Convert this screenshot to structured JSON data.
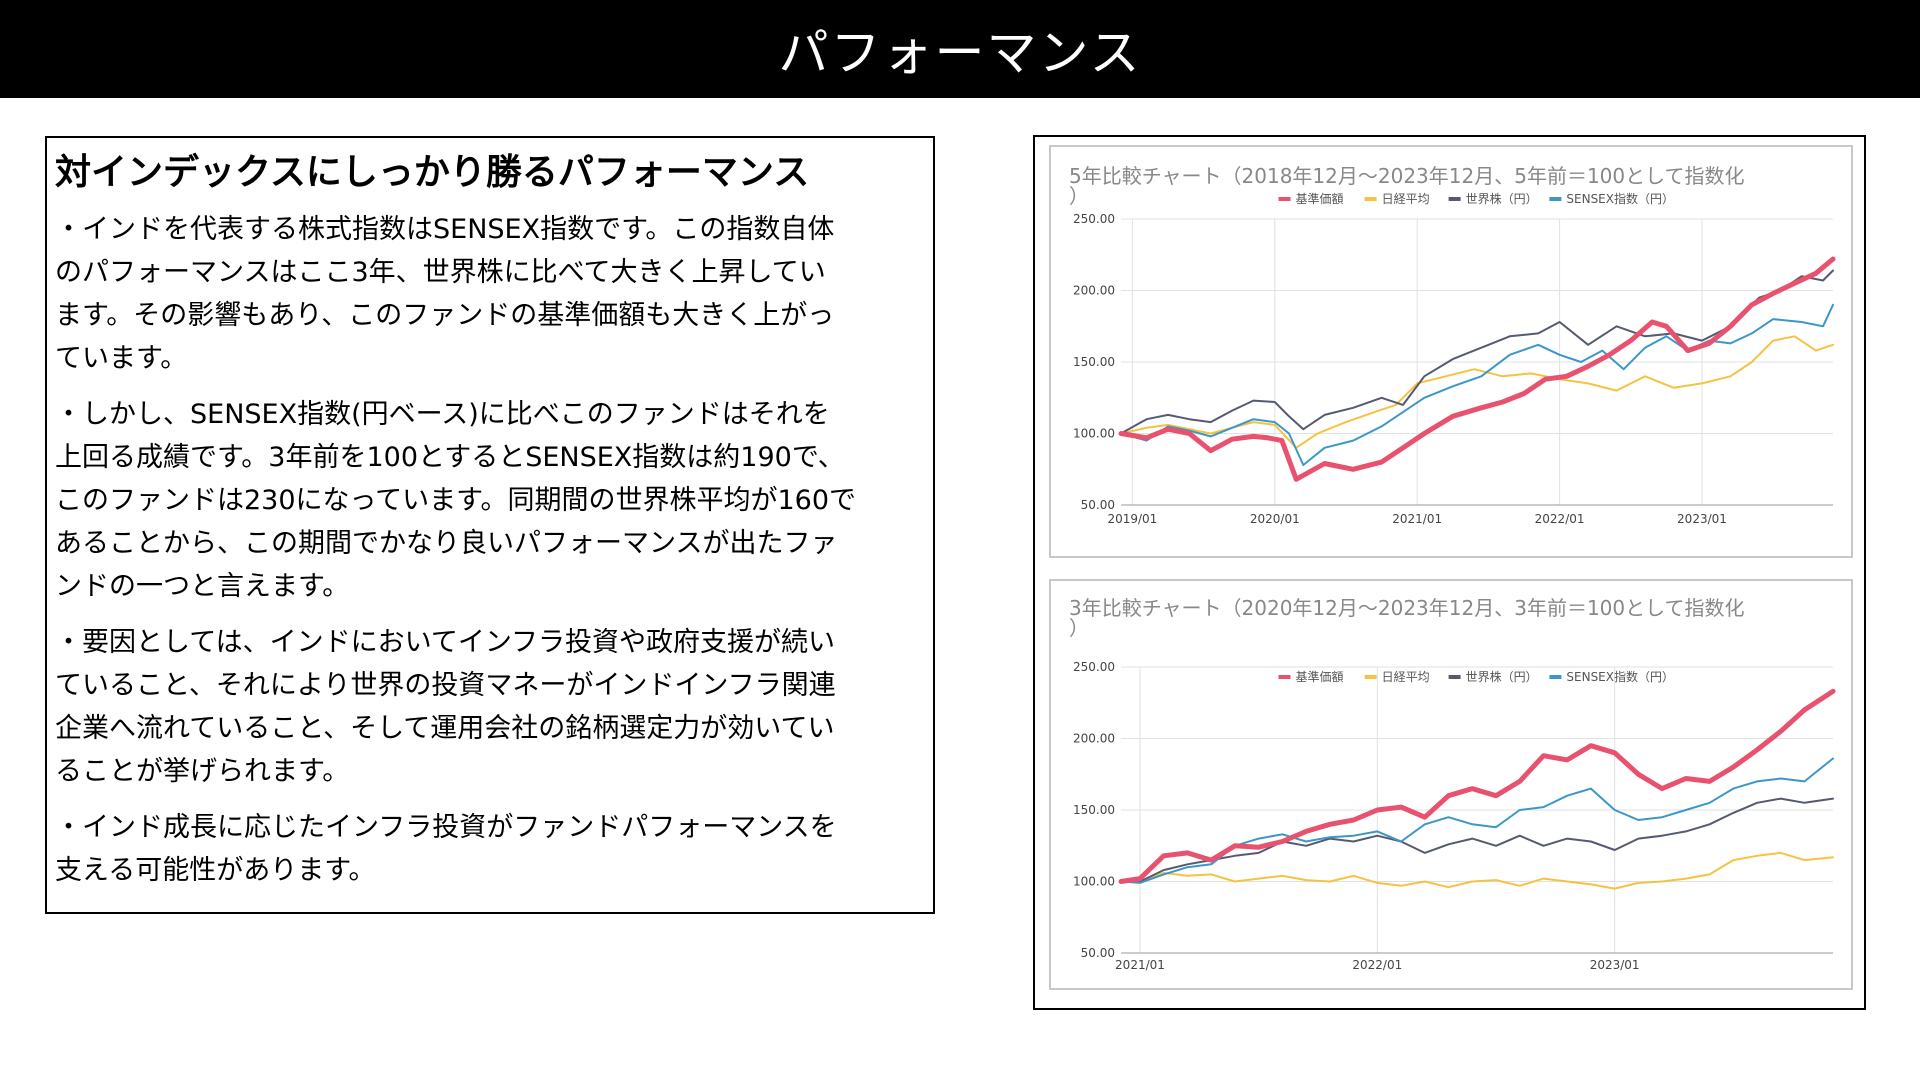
{
  "page": {
    "title": "パフォーマンス"
  },
  "text_box": {
    "heading": "対インデックスにしっかり勝るパフォーマンス",
    "paragraphs": [
      [
        "・インドを代表する株式指数はSENSEX指数です。この指数自体",
        "のパフォーマンスはここ3年、世界株に比べて大きく上昇してい",
        "ます。その影響もあり、このファンドの基準価額も大きく上がっ",
        "ています。"
      ],
      [
        "・しかし、SENSEX指数(円ベース)に比べこのファンドはそれを",
        "上回る成績です。3年前を100とするとSENSEX指数は約190で、",
        "このファンドは230になっています。同期間の世界株平均が160で",
        "あることから、この期間でかなり良いパフォーマンスが出たファ",
        "ンドの一つと言えます。"
      ],
      [
        "・要因としては、インドにおいてインフラ投資や政府支援が続い",
        "ていること、それにより世界の投資マネーがインドインフラ関連",
        "企業へ流れていること、そして運用会社の銘柄選定力が効いてい",
        "ることが挙げられます。"
      ],
      [
        "・インド成長に応じたインフラ投資がファンドパフォーマンスを",
        "支える可能性があります。"
      ]
    ]
  },
  "colors": {
    "fund": "#e8526e",
    "nikkei": "#f5c242",
    "world": "#555a70",
    "sensex": "#3c97c8"
  },
  "chart_data": [
    {
      "type": "line",
      "title_line1": "5年比較チャート（2018年12月～2023年12月、5年前＝100として指数化",
      "title_line2": "）",
      "ylim": [
        50,
        250
      ],
      "yticks": [
        "250.00",
        "200.00",
        "150.00",
        "100.00",
        "50.00"
      ],
      "xticks": [
        {
          "x": 2019.0,
          "label": "2019/01"
        },
        {
          "x": 2020.0,
          "label": "2020/01"
        },
        {
          "x": 2021.0,
          "label": "2021/01"
        },
        {
          "x": 2022.0,
          "label": "2022/01"
        },
        {
          "x": 2023.0,
          "label": "2023/01"
        }
      ],
      "xlim": [
        2018.92,
        2023.92
      ],
      "legend": [
        "基準価額",
        "日経平均",
        "世界株（円）",
        "SENSEX指数（円）"
      ],
      "legend_position": "top",
      "grid": true,
      "series": [
        {
          "name": "基準価額",
          "color_key": "fund",
          "width": 5,
          "x": [
            2018.92,
            2019.1,
            2019.25,
            2019.4,
            2019.55,
            2019.7,
            2019.85,
            2019.95,
            2020.05,
            2020.15,
            2020.35,
            2020.55,
            2020.75,
            2020.9,
            2021.05,
            2021.25,
            2021.45,
            2021.6,
            2021.75,
            2021.9,
            2022.05,
            2022.2,
            2022.35,
            2022.5,
            2022.65,
            2022.75,
            2022.9,
            2023.05,
            2023.2,
            2023.35,
            2023.5,
            2023.65,
            2023.8,
            2023.92
          ],
          "y": [
            100,
            97,
            103,
            100,
            88,
            96,
            98,
            97,
            95,
            68,
            79,
            75,
            80,
            90,
            100,
            112,
            118,
            122,
            128,
            138,
            140,
            147,
            155,
            165,
            178,
            175,
            158,
            163,
            175,
            190,
            198,
            205,
            212,
            222
          ]
        },
        {
          "name": "日経平均",
          "color_key": "nikkei",
          "width": 2,
          "x": [
            2018.92,
            2019.1,
            2019.25,
            2019.4,
            2019.55,
            2019.7,
            2019.85,
            2020.0,
            2020.15,
            2020.3,
            2020.5,
            2020.7,
            2020.85,
            2021.0,
            2021.2,
            2021.4,
            2021.6,
            2021.8,
            2022.0,
            2022.2,
            2022.4,
            2022.6,
            2022.8,
            2023.0,
            2023.2,
            2023.35,
            2023.5,
            2023.65,
            2023.8,
            2023.92
          ],
          "y": [
            100,
            104,
            106,
            103,
            100,
            104,
            108,
            106,
            90,
            100,
            108,
            115,
            120,
            135,
            140,
            145,
            140,
            142,
            138,
            135,
            130,
            140,
            132,
            135,
            140,
            150,
            165,
            168,
            158,
            162
          ]
        },
        {
          "name": "世界株（円）",
          "color_key": "world",
          "width": 2,
          "x": [
            2018.92,
            2019.1,
            2019.25,
            2019.4,
            2019.55,
            2019.7,
            2019.85,
            2020.0,
            2020.1,
            2020.2,
            2020.35,
            2020.55,
            2020.75,
            2020.9,
            2021.05,
            2021.25,
            2021.45,
            2021.65,
            2021.85,
            2022.0,
            2022.2,
            2022.4,
            2022.6,
            2022.8,
            2023.0,
            2023.2,
            2023.4,
            2023.55,
            2023.7,
            2023.85,
            2023.92
          ],
          "y": [
            100,
            110,
            113,
            110,
            108,
            116,
            123,
            122,
            112,
            103,
            113,
            118,
            125,
            120,
            140,
            152,
            160,
            168,
            170,
            178,
            162,
            175,
            168,
            170,
            165,
            175,
            195,
            200,
            210,
            207,
            214
          ]
        },
        {
          "name": "SENSEX指数（円）",
          "color_key": "sensex",
          "width": 2,
          "x": [
            2018.92,
            2019.1,
            2019.25,
            2019.4,
            2019.55,
            2019.7,
            2019.85,
            2020.0,
            2020.1,
            2020.2,
            2020.35,
            2020.55,
            2020.75,
            2020.9,
            2021.05,
            2021.25,
            2021.45,
            2021.65,
            2021.85,
            2022.0,
            2022.15,
            2022.3,
            2022.45,
            2022.6,
            2022.75,
            2022.9,
            2023.05,
            2023.2,
            2023.35,
            2023.5,
            2023.7,
            2023.85,
            2023.92
          ],
          "y": [
            100,
            95,
            105,
            102,
            98,
            104,
            110,
            108,
            100,
            78,
            90,
            95,
            105,
            115,
            125,
            133,
            140,
            155,
            162,
            155,
            150,
            158,
            145,
            160,
            168,
            158,
            165,
            163,
            170,
            180,
            178,
            175,
            190
          ]
        }
      ]
    },
    {
      "type": "line",
      "title_line1": "3年比較チャート（2020年12月～2023年12月、3年前＝100として指数化",
      "title_line2": "）",
      "ylim": [
        50,
        250
      ],
      "yticks": [
        "250.00",
        "200.00",
        "150.00",
        "100.00",
        "50.00"
      ],
      "xticks": [
        {
          "x": 2021.0,
          "label": "2021/01"
        },
        {
          "x": 2022.0,
          "label": "2022/01"
        },
        {
          "x": 2023.0,
          "label": "2023/01"
        }
      ],
      "xlim": [
        2020.92,
        2023.92
      ],
      "legend": [
        "基準価額",
        "日経平均",
        "世界株（円）",
        "SENSEX指数（円）"
      ],
      "legend_position": "top",
      "grid": true,
      "series": [
        {
          "name": "基準価額",
          "color_key": "fund",
          "width": 5,
          "x": [
            2020.92,
            2021.0,
            2021.1,
            2021.2,
            2021.3,
            2021.4,
            2021.5,
            2021.6,
            2021.7,
            2021.8,
            2021.9,
            2022.0,
            2022.1,
            2022.2,
            2022.3,
            2022.4,
            2022.5,
            2022.6,
            2022.7,
            2022.8,
            2022.9,
            2023.0,
            2023.1,
            2023.2,
            2023.3,
            2023.4,
            2023.5,
            2023.6,
            2023.7,
            2023.8,
            2023.92
          ],
          "y": [
            100,
            102,
            118,
            120,
            115,
            125,
            124,
            128,
            135,
            140,
            143,
            150,
            152,
            145,
            160,
            165,
            160,
            170,
            188,
            185,
            195,
            190,
            175,
            165,
            172,
            170,
            180,
            192,
            205,
            220,
            233
          ]
        },
        {
          "name": "日経平均",
          "color_key": "nikkei",
          "width": 2,
          "x": [
            2020.92,
            2021.0,
            2021.1,
            2021.2,
            2021.3,
            2021.4,
            2021.5,
            2021.6,
            2021.7,
            2021.8,
            2021.9,
            2022.0,
            2022.1,
            2022.2,
            2022.3,
            2022.4,
            2022.5,
            2022.6,
            2022.7,
            2022.8,
            2022.9,
            2023.0,
            2023.1,
            2023.2,
            2023.3,
            2023.4,
            2023.5,
            2023.6,
            2023.7,
            2023.8,
            2023.92
          ],
          "y": [
            100,
            100,
            106,
            104,
            105,
            100,
            102,
            104,
            101,
            100,
            104,
            99,
            97,
            100,
            96,
            100,
            101,
            97,
            102,
            100,
            98,
            95,
            99,
            100,
            102,
            105,
            115,
            118,
            120,
            115,
            117
          ]
        },
        {
          "name": "世界株（円）",
          "color_key": "world",
          "width": 2,
          "x": [
            2020.92,
            2021.0,
            2021.1,
            2021.2,
            2021.3,
            2021.4,
            2021.5,
            2021.6,
            2021.7,
            2021.8,
            2021.9,
            2022.0,
            2022.1,
            2022.2,
            2022.3,
            2022.4,
            2022.5,
            2022.6,
            2022.7,
            2022.8,
            2022.9,
            2023.0,
            2023.1,
            2023.2,
            2023.3,
            2023.4,
            2023.5,
            2023.6,
            2023.7,
            2023.8,
            2023.92
          ],
          "y": [
            100,
            100,
            108,
            112,
            115,
            118,
            120,
            128,
            125,
            130,
            128,
            132,
            128,
            120,
            126,
            130,
            125,
            132,
            125,
            130,
            128,
            122,
            130,
            132,
            135,
            140,
            148,
            155,
            158,
            155,
            158
          ]
        },
        {
          "name": "SENSEX指数（円）",
          "color_key": "sensex",
          "width": 2,
          "x": [
            2020.92,
            2021.0,
            2021.1,
            2021.2,
            2021.3,
            2021.4,
            2021.5,
            2021.6,
            2021.7,
            2021.8,
            2021.9,
            2022.0,
            2022.1,
            2022.2,
            2022.3,
            2022.4,
            2022.5,
            2022.6,
            2022.7,
            2022.8,
            2022.9,
            2023.0,
            2023.1,
            2023.2,
            2023.3,
            2023.4,
            2023.5,
            2023.6,
            2023.7,
            2023.8,
            2023.92
          ],
          "y": [
            100,
            99,
            105,
            110,
            112,
            125,
            130,
            133,
            128,
            131,
            132,
            135,
            128,
            140,
            145,
            140,
            138,
            150,
            152,
            160,
            165,
            150,
            143,
            145,
            150,
            155,
            165,
            170,
            172,
            170,
            186
          ]
        }
      ]
    }
  ]
}
